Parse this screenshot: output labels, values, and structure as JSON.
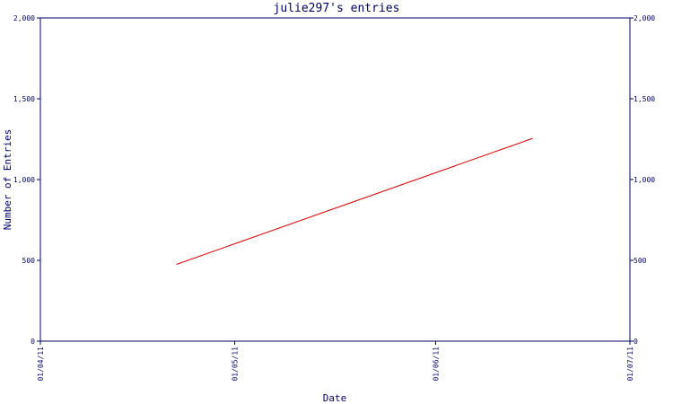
{
  "chart_data": {
    "type": "line",
    "title": "julie297's entries",
    "xlabel": "Date",
    "ylabel": "Number of Entries",
    "y_ticks": [
      0,
      500,
      1000,
      1500,
      2000
    ],
    "y_tick_labels": [
      "0",
      "500",
      "1,000",
      "1,500",
      "2,000"
    ],
    "x_ticks": [
      "2011-04-01",
      "2011-05-01",
      "2011-06-01",
      "2011-07-01"
    ],
    "x_tick_labels": [
      "01/04/11",
      "01/05/11",
      "01/06/11",
      "01/07/11"
    ],
    "xlim": [
      "2011-04-01",
      "2011-07-01"
    ],
    "ylim": [
      0,
      2000
    ],
    "grid": false,
    "series": [
      {
        "color": "#dd0000",
        "points": [
          {
            "x": "2011-04-22",
            "y": 475
          },
          {
            "x": "2011-06-16",
            "y": 1255
          }
        ]
      }
    ]
  },
  "colors": {
    "axis": "#000066",
    "line": "#dd0000",
    "background": "#ffffff"
  }
}
